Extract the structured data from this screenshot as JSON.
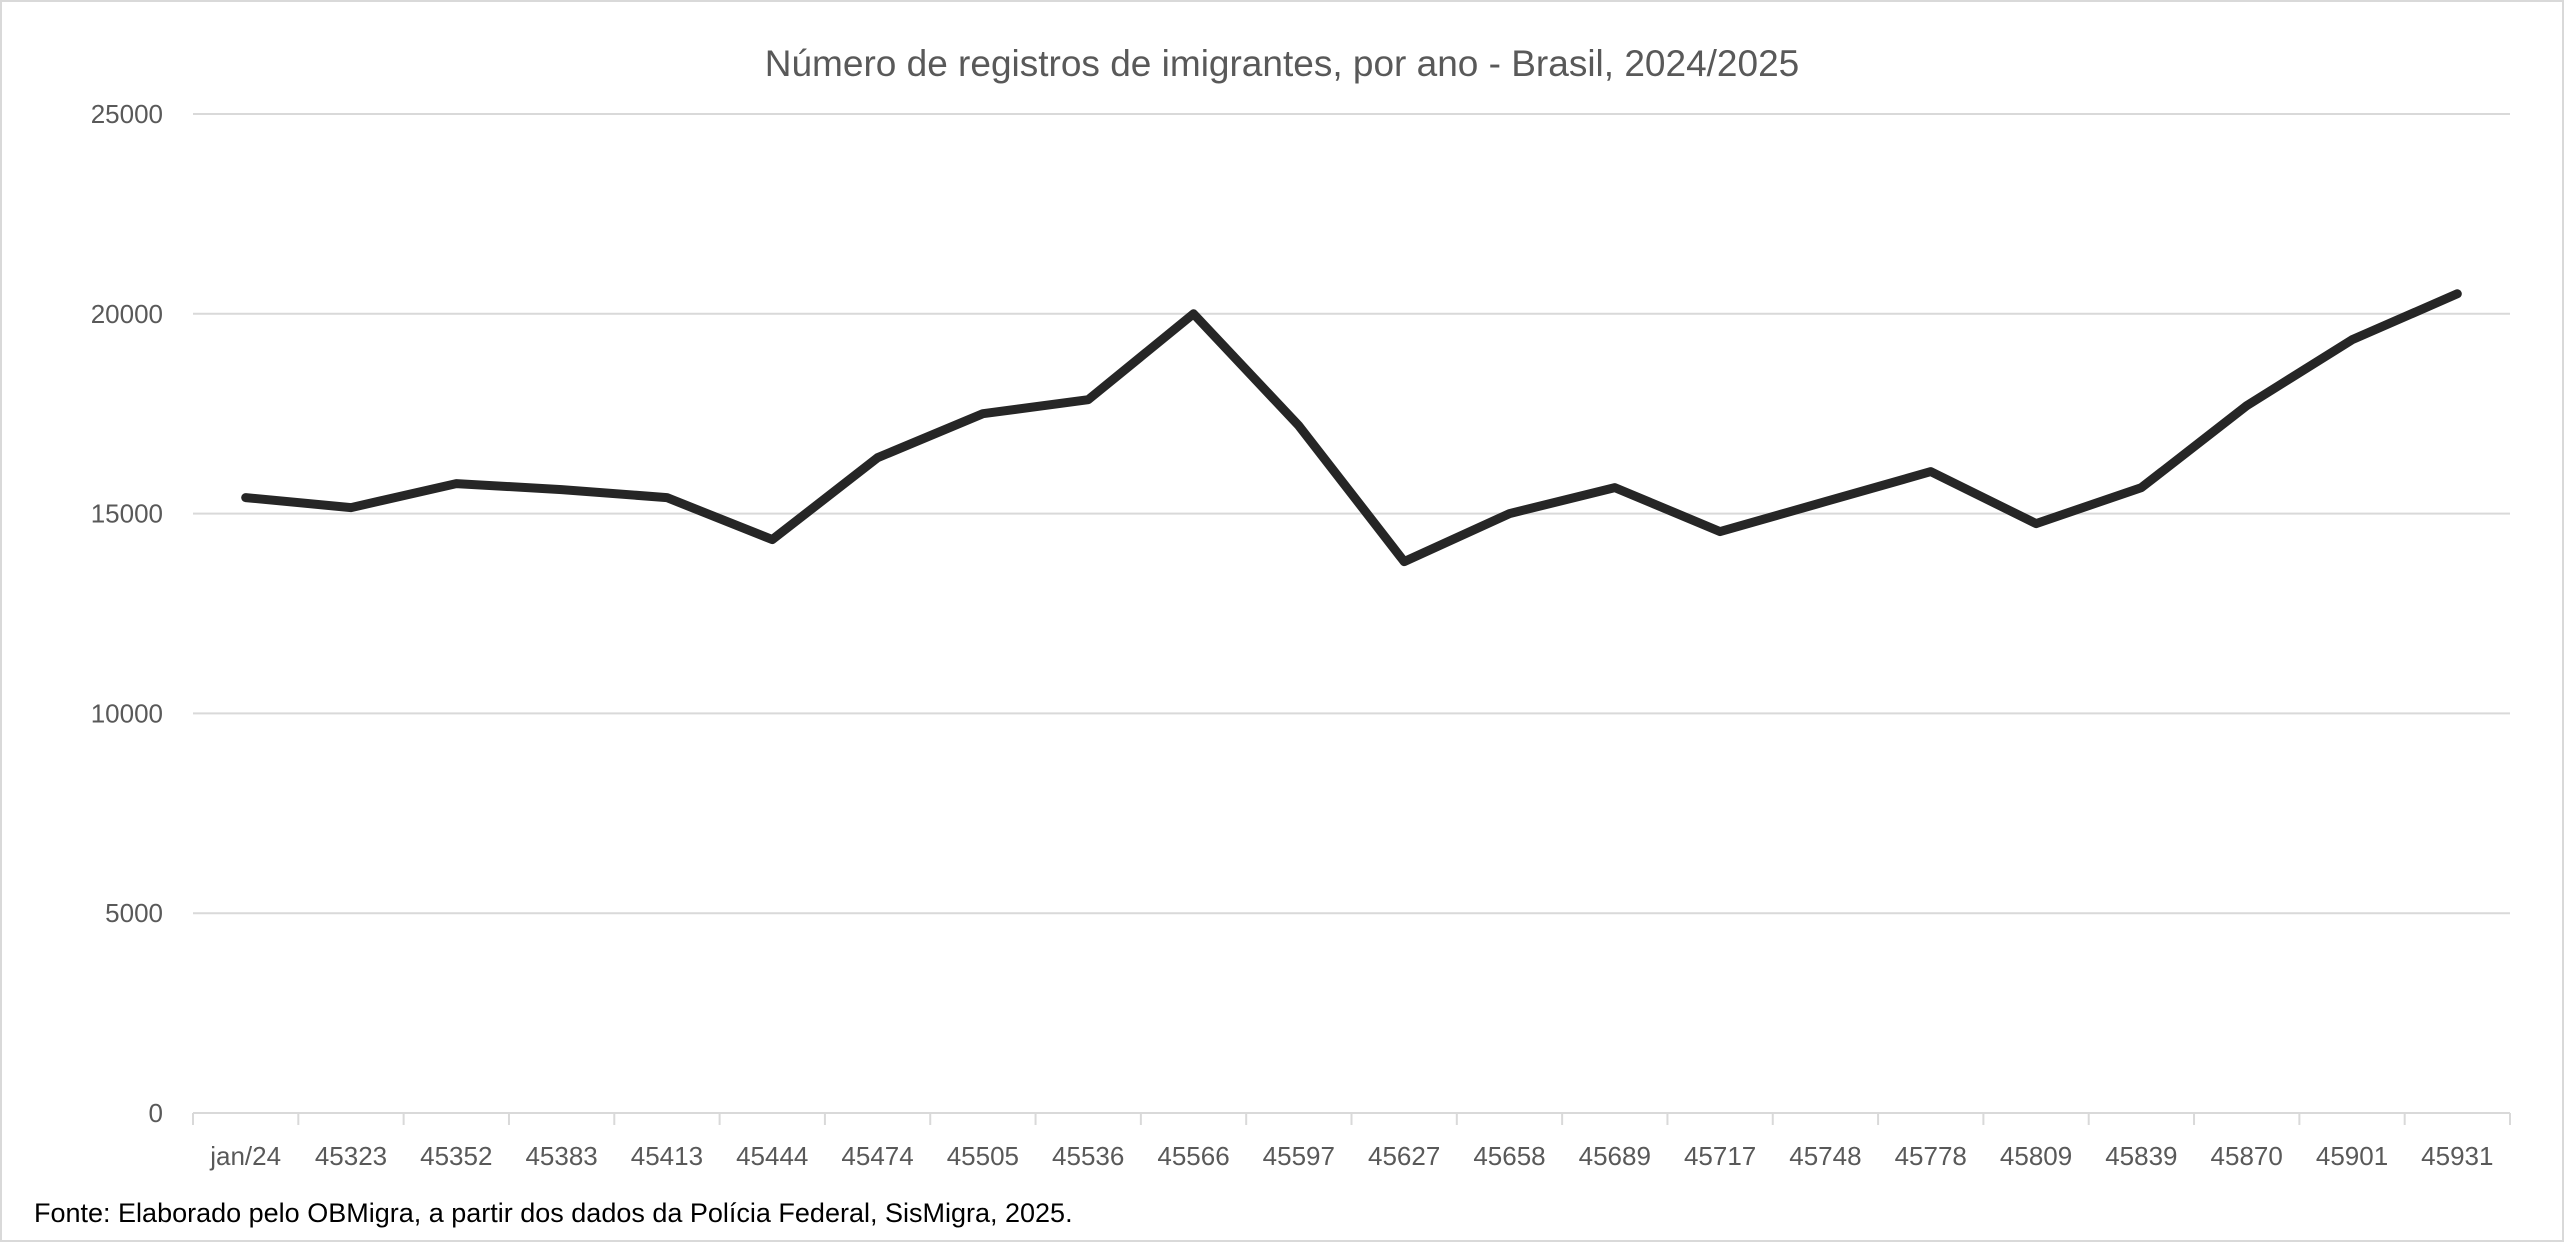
{
  "chart_data": {
    "type": "line",
    "title": "Número de registros de imigrantes, por ano - Brasil, 2024/2025",
    "xlabel": "",
    "ylabel": "",
    "categories": [
      "jan/24",
      "45323",
      "45352",
      "45383",
      "45413",
      "45444",
      "45474",
      "45505",
      "45536",
      "45566",
      "45597",
      "45627",
      "45658",
      "45689",
      "45717",
      "45748",
      "45778",
      "45809",
      "45839",
      "45870",
      "45901",
      "45931"
    ],
    "series": [
      {
        "values": [
          15400,
          15150,
          15750,
          15600,
          15400,
          14350,
          16400,
          17500,
          17850,
          20000,
          17200,
          13800,
          15000,
          15650,
          14550,
          15300,
          16050,
          14750,
          15650,
          17700,
          19350,
          20500
        ]
      }
    ],
    "ylim": [
      0,
      25000
    ],
    "yticks": [
      0,
      5000,
      10000,
      15000,
      20000,
      25000
    ],
    "grid": true,
    "legend": "none",
    "line_color": "#262626",
    "grid_color": "#d9d9d9"
  },
  "source": "Fonte: Elaborado pelo OBMigra, a partir dos dados da Polícia Federal, SisMigra, 2025."
}
